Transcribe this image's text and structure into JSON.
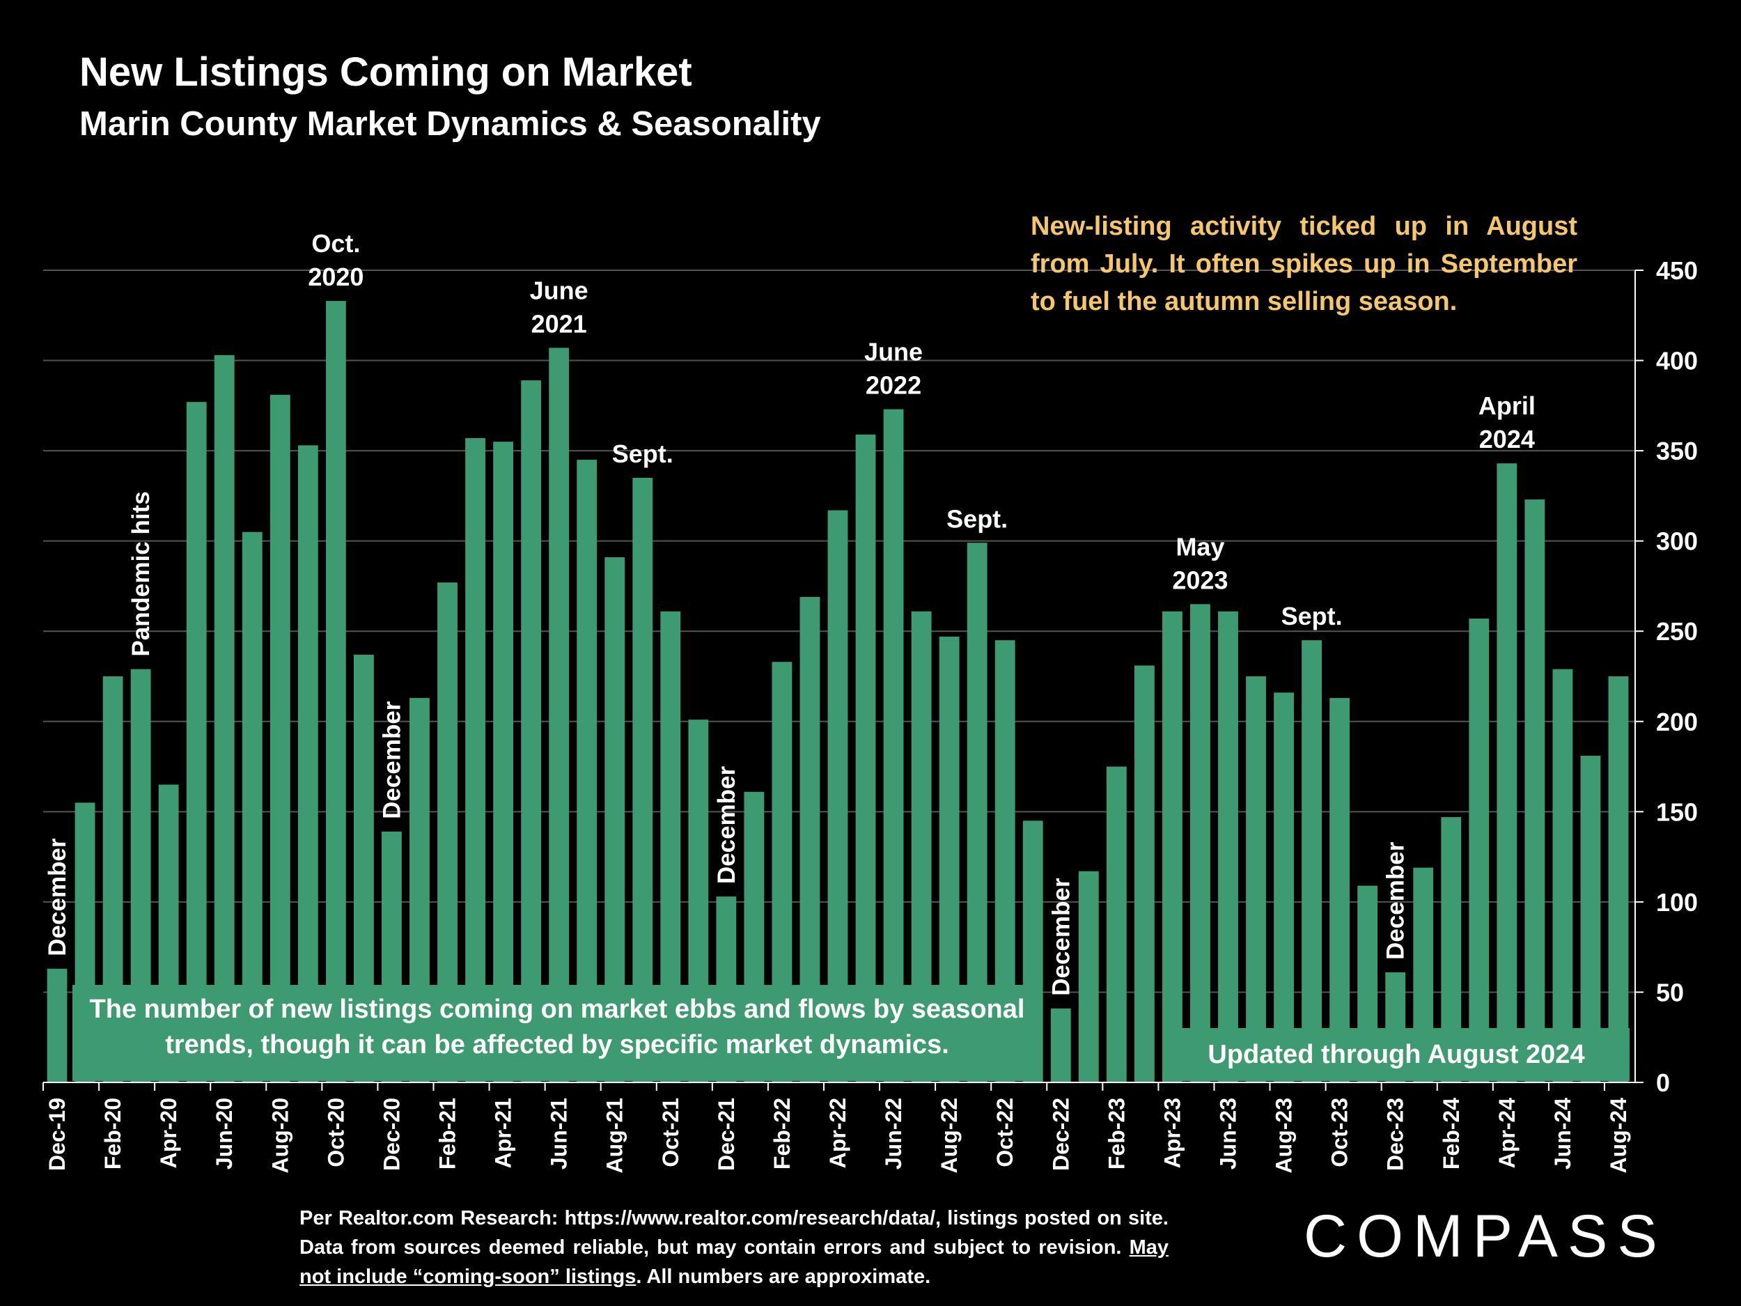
{
  "header": {
    "title": "New Listings Coming on Market",
    "subtitle": "Marin County Market Dynamics & Seasonality"
  },
  "callout": "New-listing activity ticked up in August from July. It often spikes up in September to fuel the autumn selling season.",
  "info_box_left": "The number of new listings coming on market ebbs and flows by seasonal trends, though it can be affected by specific market dynamics.",
  "info_box_right": "Updated through August 2024",
  "footer": {
    "source_part1": "Per Realtor.com Research:  https://www.realtor.com/research/data/, listings posted on site. Data from sources deemed reliable, but may contain errors and subject to revision. ",
    "source_underlined": "May not include “coming-soon” listings",
    "source_part2": ". All numbers are approximate.",
    "logo": "COMPASS"
  },
  "colors": {
    "bar": "#3e9a70",
    "callout": "#f5c76a",
    "background": "#000000",
    "grid": "#555555"
  },
  "chart_data": {
    "type": "bar",
    "title": "New Listings Coming on Market",
    "xlabel": "",
    "ylabel": "",
    "ylim": [
      0,
      450
    ],
    "yticks": [
      0,
      50,
      100,
      150,
      200,
      250,
      300,
      350,
      400,
      450
    ],
    "y_axis_position": "right",
    "grid": true,
    "categories": [
      "Dec-19",
      "Jan-20",
      "Feb-20",
      "Mar-20",
      "Apr-20",
      "May-20",
      "Jun-20",
      "Jul-20",
      "Aug-20",
      "Sep-20",
      "Oct-20",
      "Nov-20",
      "Dec-20",
      "Jan-21",
      "Feb-21",
      "Mar-21",
      "Apr-21",
      "May-21",
      "Jun-21",
      "Jul-21",
      "Aug-21",
      "Sep-21",
      "Oct-21",
      "Nov-21",
      "Dec-21",
      "Jan-22",
      "Feb-22",
      "Mar-22",
      "Apr-22",
      "May-22",
      "Jun-22",
      "Jul-22",
      "Aug-22",
      "Sep-22",
      "Oct-22",
      "Nov-22",
      "Dec-22",
      "Jan-23",
      "Feb-23",
      "Mar-23",
      "Apr-23",
      "May-23",
      "Jun-23",
      "Jul-23",
      "Aug-23",
      "Sep-23",
      "Oct-23",
      "Nov-23",
      "Dec-23",
      "Jan-24",
      "Feb-24",
      "Mar-24",
      "Apr-24",
      "May-24",
      "Jun-24",
      "Jul-24",
      "Aug-24"
    ],
    "tick_labels_shown": [
      "Dec-19",
      "Feb-20",
      "Apr-20",
      "Jun-20",
      "Aug-20",
      "Oct-20",
      "Dec-20",
      "Feb-21",
      "Apr-21",
      "Jun-21",
      "Aug-21",
      "Oct-21",
      "Dec-21",
      "Feb-22",
      "Apr-22",
      "Jun-22",
      "Aug-22",
      "Oct-22",
      "Dec-22",
      "Feb-23",
      "Apr-23",
      "Jun-23",
      "Aug-23",
      "Oct-23",
      "Dec-23",
      "Feb-24",
      "Apr-24",
      "Jun-24",
      "Aug-24"
    ],
    "values": [
      63,
      155,
      225,
      229,
      165,
      377,
      403,
      305,
      381,
      353,
      433,
      237,
      139,
      213,
      277,
      357,
      355,
      389,
      407,
      345,
      291,
      335,
      261,
      201,
      103,
      161,
      233,
      269,
      317,
      359,
      373,
      261,
      247,
      299,
      245,
      145,
      41,
      117,
      175,
      231,
      261,
      265,
      261,
      225,
      216,
      245,
      213,
      109,
      61,
      119,
      147,
      257,
      343,
      323,
      229,
      181,
      225
    ],
    "annotations": [
      {
        "index": 0,
        "text": "December",
        "rotated": true
      },
      {
        "index": 3,
        "text": "Pandemic hits",
        "rotated": true
      },
      {
        "index": 10,
        "text": "Oct.\n2020",
        "rotated": false
      },
      {
        "index": 12,
        "text": "December",
        "rotated": true
      },
      {
        "index": 18,
        "text": "June\n2021",
        "rotated": false
      },
      {
        "index": 21,
        "text": "Sept.",
        "rotated": false
      },
      {
        "index": 24,
        "text": "December",
        "rotated": true
      },
      {
        "index": 30,
        "text": "June\n2022",
        "rotated": false
      },
      {
        "index": 33,
        "text": "Sept.",
        "rotated": false
      },
      {
        "index": 36,
        "text": "December",
        "rotated": true
      },
      {
        "index": 41,
        "text": "May\n2023",
        "rotated": false
      },
      {
        "index": 45,
        "text": "Sept.",
        "rotated": false
      },
      {
        "index": 48,
        "text": "December",
        "rotated": true
      },
      {
        "index": 52,
        "text": "April\n2024",
        "rotated": false
      }
    ]
  }
}
